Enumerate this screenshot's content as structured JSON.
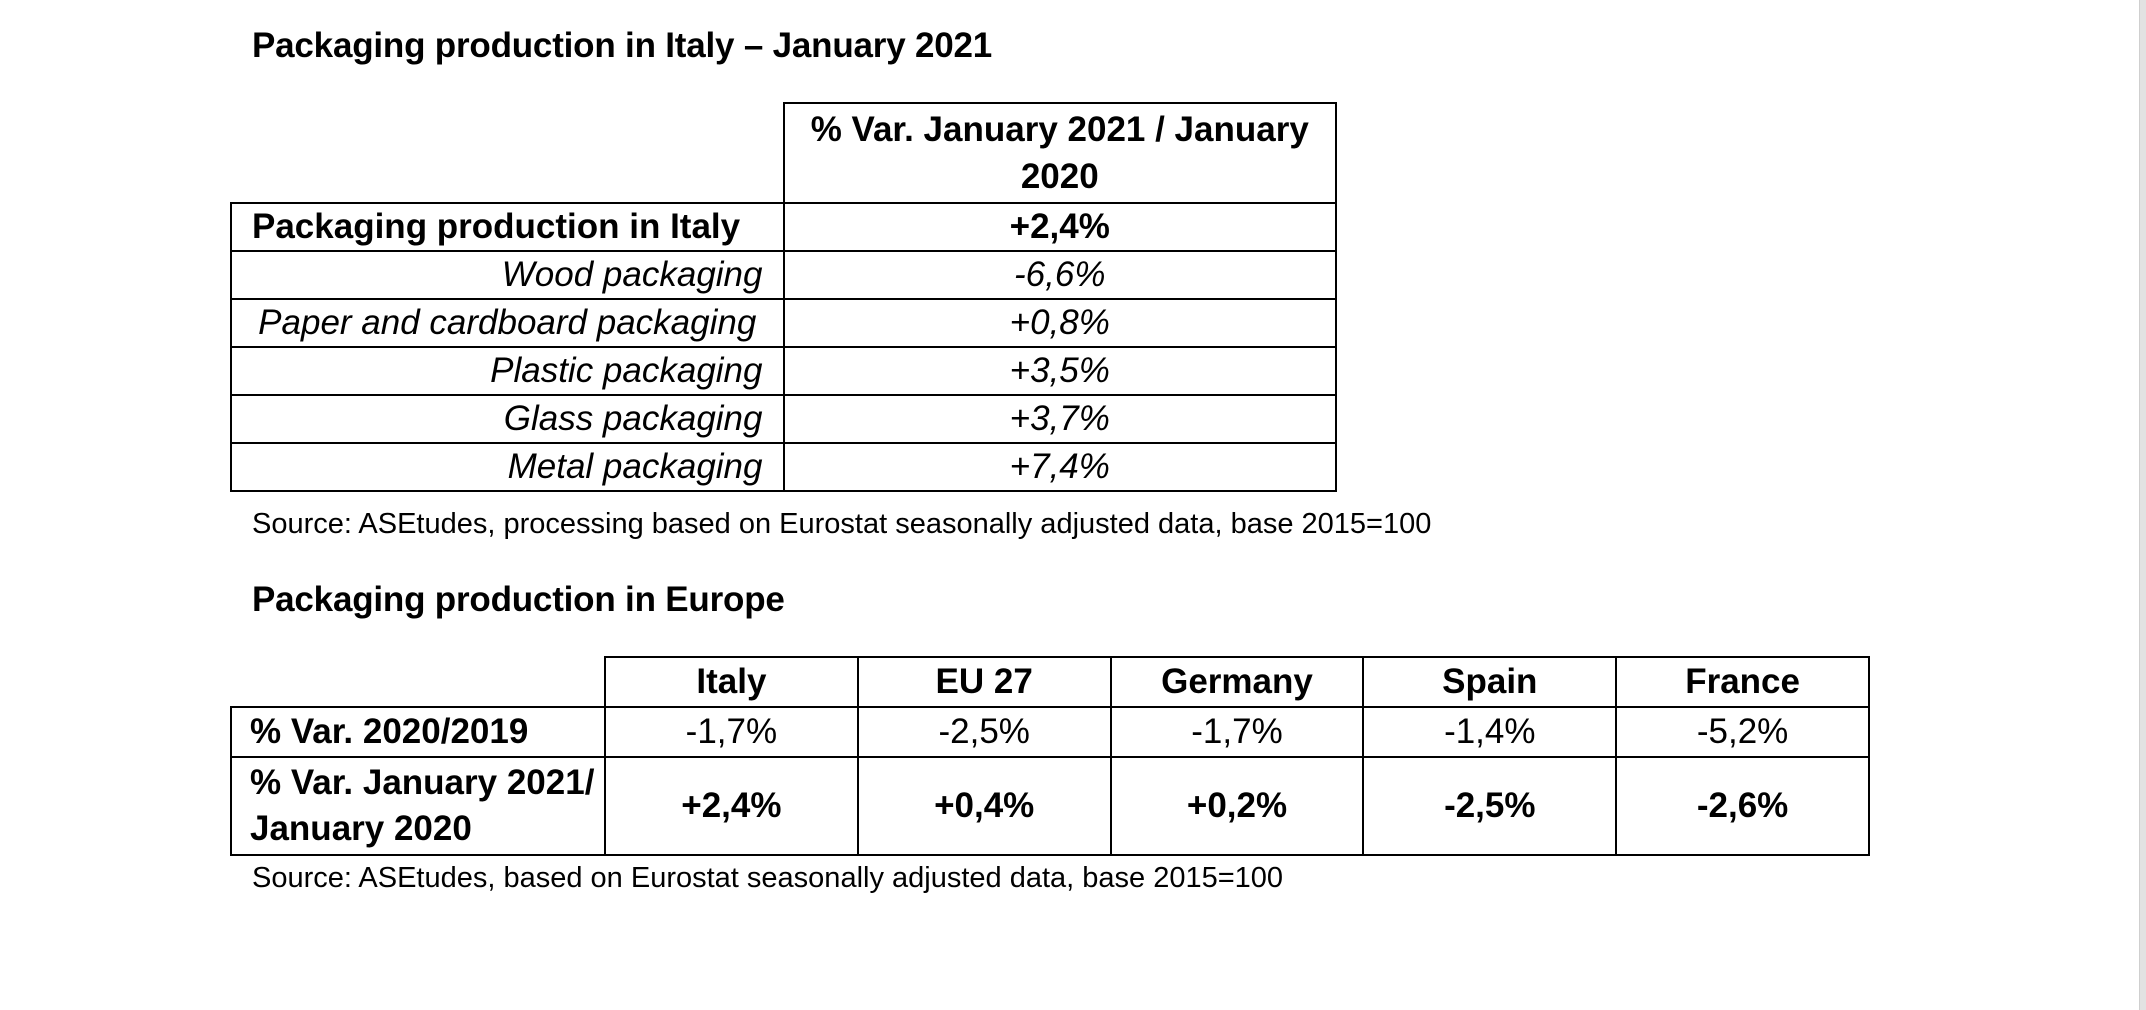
{
  "italy": {
    "title": "Packaging production in Italy – January 2021",
    "column_header": "% Var. January 2021 / January 2020",
    "total": {
      "label": "Packaging production in Italy",
      "value": "+2,4%"
    },
    "rows": [
      {
        "label": "Wood packaging",
        "value": "-6,6%"
      },
      {
        "label": "Paper and cardboard packaging",
        "value": "+0,8%"
      },
      {
        "label": "Plastic packaging",
        "value": "+3,5%"
      },
      {
        "label": "Glass packaging",
        "value": "+3,7%"
      },
      {
        "label": "Metal packaging",
        "value": "+7,4%"
      }
    ],
    "source": "Source: ASEtudes, processing based on Eurostat seasonally adjusted data, base 2015=100"
  },
  "europe": {
    "title": "Packaging production in Europe",
    "columns": [
      "Italy",
      "EU 27",
      "Germany",
      "Spain",
      "France"
    ],
    "rows": [
      {
        "label": "% Var. 2020/2019",
        "values": [
          "-1,7%",
          "-2,5%",
          "-1,7%",
          "-1,4%",
          "-5,2%"
        ]
      },
      {
        "label": "% Var.  January 2021/ January 2020",
        "values": [
          "+2,4%",
          "+0,4%",
          "+0,2%",
          "-2,5%",
          "-2,6%"
        ]
      }
    ],
    "source": "Source: ASEtudes, based on Eurostat seasonally adjusted data, base 2015=100"
  }
}
